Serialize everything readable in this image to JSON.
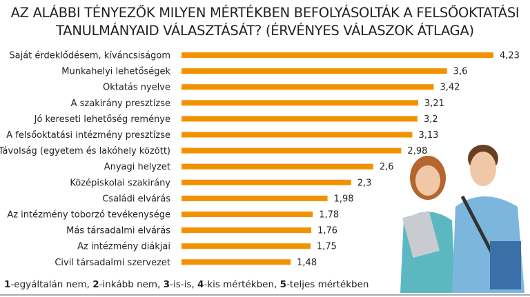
{
  "chart_data": {
    "type": "bar",
    "orientation": "horizontal",
    "title": [
      "AZ ALÁBBI TÉNYEZŐK MILYEN MÉRTÉKBEN BEFOLYÁSOLTÁK A FELSŐOKTATÁSI",
      "TANULMÁNYAID VÁLASZTÁSÁT? (ÉRVÉNYES VÁLASZOK ÁTLAGA)"
    ],
    "categories": [
      "Saját érdeklődésem, kíváncsiságom",
      "Munkahelyi lehetőségek",
      "Oktatás nyelve",
      "A szakirány presztízse",
      "Jó kereseti lehetőség reménye",
      "A felsőoktatási intézmény presztízse",
      "Távolság (egyetem és lakóhely között)",
      "Anyagi helyzet",
      "Középiskolai szakirány",
      "Családi elvárás",
      "Az intézmény toborzó tevékenysége",
      "Más társadalmi elvárás",
      "Az intézmény diákjai",
      "Civil társadalmi szervezet"
    ],
    "values": [
      4.23,
      3.6,
      3.42,
      3.21,
      3.2,
      3.13,
      2.98,
      2.6,
      2.3,
      1.98,
      1.78,
      1.76,
      1.75,
      1.48
    ],
    "data_labels": [
      "4,23",
      "3,6",
      "3,42",
      "3,21",
      "3,2",
      "3,13",
      "2,98",
      "2,6",
      "2,3",
      "1,98",
      "1,78",
      "1,76",
      "1,75",
      "1,48"
    ],
    "xlim": [
      0,
      4.23
    ],
    "grid": false,
    "bar_color": "#f39200",
    "legend_note": [
      {
        "key": "1",
        "text": "-egyáltalán nem, "
      },
      {
        "key": "2",
        "text": "-inkább nem, "
      },
      {
        "key": "3",
        "text": "-is-is, "
      },
      {
        "key": "4",
        "text": "-kis mértékben, "
      },
      {
        "key": "5",
        "text": "-teljes mértékben"
      }
    ]
  }
}
